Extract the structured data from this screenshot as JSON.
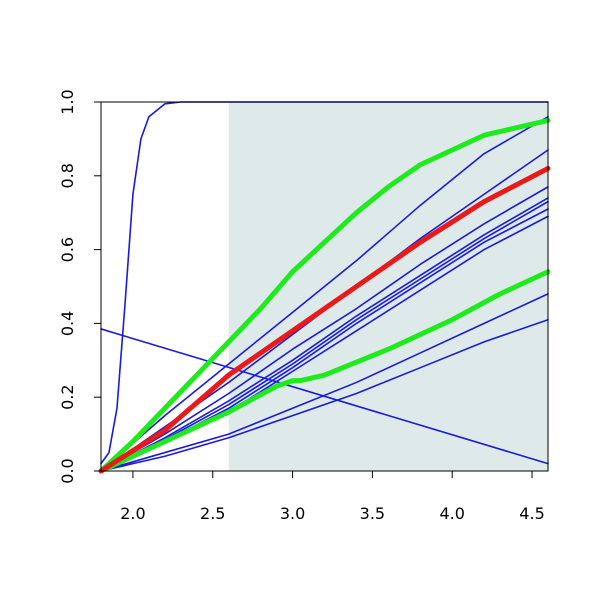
{
  "chart_data": {
    "type": "line",
    "title": "",
    "xlabel": "",
    "ylabel": "",
    "xlim": [
      1.8,
      4.6
    ],
    "ylim": [
      0,
      1
    ],
    "x_ticks": [
      "2.0",
      "2.5",
      "3.0",
      "3.5",
      "4.0",
      "4.5"
    ],
    "y_ticks": [
      "0.0",
      "0.2",
      "0.4",
      "0.6",
      "0.8",
      "1.0"
    ],
    "grid": false,
    "legend": "none",
    "shaded_region": {
      "x_from": 2.6,
      "x_to": 4.6,
      "color": "#deeaea"
    },
    "colors": {
      "blue": "#1a1adb",
      "green": "#1eea1e",
      "red": "#ea1a1a"
    },
    "series": [
      {
        "color": "blue",
        "width": "thin",
        "points": [
          [
            1.8,
            0.02
          ],
          [
            1.85,
            0.05
          ],
          [
            1.9,
            0.17
          ],
          [
            1.95,
            0.45
          ],
          [
            2.0,
            0.75
          ],
          [
            2.05,
            0.9
          ],
          [
            2.1,
            0.96
          ],
          [
            2.2,
            0.995
          ],
          [
            2.3,
            1.0
          ],
          [
            4.6,
            1.0
          ]
        ]
      },
      {
        "color": "blue",
        "width": "thin",
        "points": [
          [
            1.8,
            0.385
          ],
          [
            4.6,
            0.02
          ]
        ]
      },
      {
        "color": "blue",
        "width": "thin",
        "points": [
          [
            1.8,
            0.0
          ],
          [
            2.2,
            0.15
          ],
          [
            2.6,
            0.29
          ],
          [
            3.0,
            0.43
          ],
          [
            3.4,
            0.57
          ],
          [
            3.8,
            0.72
          ],
          [
            4.2,
            0.86
          ],
          [
            4.6,
            0.96
          ]
        ]
      },
      {
        "color": "blue",
        "width": "thin",
        "points": [
          [
            1.8,
            0.0
          ],
          [
            2.2,
            0.12
          ],
          [
            2.6,
            0.24
          ],
          [
            3.0,
            0.37
          ],
          [
            3.4,
            0.5
          ],
          [
            3.8,
            0.63
          ],
          [
            4.2,
            0.75
          ],
          [
            4.6,
            0.87
          ]
        ]
      },
      {
        "color": "blue",
        "width": "thin",
        "points": [
          [
            1.8,
            0.0
          ],
          [
            2.2,
            0.1
          ],
          [
            2.6,
            0.21
          ],
          [
            3.0,
            0.33
          ],
          [
            3.4,
            0.44
          ],
          [
            3.8,
            0.56
          ],
          [
            4.2,
            0.67
          ],
          [
            4.6,
            0.77
          ]
        ]
      },
      {
        "color": "blue",
        "width": "thin",
        "points": [
          [
            1.8,
            0.0
          ],
          [
            2.2,
            0.09
          ],
          [
            2.6,
            0.19
          ],
          [
            3.0,
            0.3
          ],
          [
            3.4,
            0.42
          ],
          [
            3.8,
            0.53
          ],
          [
            4.2,
            0.64
          ],
          [
            4.6,
            0.74
          ]
        ]
      },
      {
        "color": "blue",
        "width": "thin",
        "points": [
          [
            1.8,
            0.0
          ],
          [
            2.2,
            0.085
          ],
          [
            2.6,
            0.18
          ],
          [
            3.0,
            0.29
          ],
          [
            3.4,
            0.41
          ],
          [
            3.8,
            0.52
          ],
          [
            4.2,
            0.63
          ],
          [
            4.6,
            0.73
          ]
        ]
      },
      {
        "color": "blue",
        "width": "thin",
        "points": [
          [
            1.8,
            0.0
          ],
          [
            2.2,
            0.08
          ],
          [
            2.6,
            0.17
          ],
          [
            3.0,
            0.28
          ],
          [
            3.4,
            0.4
          ],
          [
            3.8,
            0.51
          ],
          [
            4.2,
            0.62
          ],
          [
            4.6,
            0.71
          ]
        ]
      },
      {
        "color": "blue",
        "width": "thin",
        "points": [
          [
            1.8,
            0.0
          ],
          [
            2.2,
            0.075
          ],
          [
            2.6,
            0.16
          ],
          [
            3.0,
            0.27
          ],
          [
            3.4,
            0.38
          ],
          [
            3.8,
            0.49
          ],
          [
            4.2,
            0.6
          ],
          [
            4.6,
            0.69
          ]
        ]
      },
      {
        "color": "blue",
        "width": "thin",
        "points": [
          [
            1.8,
            0.0
          ],
          [
            2.2,
            0.05
          ],
          [
            2.6,
            0.1
          ],
          [
            3.0,
            0.17
          ],
          [
            3.4,
            0.24
          ],
          [
            3.8,
            0.32
          ],
          [
            4.2,
            0.4
          ],
          [
            4.6,
            0.48
          ]
        ]
      },
      {
        "color": "blue",
        "width": "thin",
        "points": [
          [
            1.8,
            0.0
          ],
          [
            2.2,
            0.04
          ],
          [
            2.6,
            0.09
          ],
          [
            3.0,
            0.15
          ],
          [
            3.4,
            0.21
          ],
          [
            3.8,
            0.28
          ],
          [
            4.2,
            0.35
          ],
          [
            4.6,
            0.41
          ]
        ]
      },
      {
        "color": "green",
        "width": "thick",
        "points": [
          [
            1.8,
            0.0
          ],
          [
            2.0,
            0.08
          ],
          [
            2.2,
            0.17
          ],
          [
            2.4,
            0.26
          ],
          [
            2.6,
            0.35
          ],
          [
            2.8,
            0.44
          ],
          [
            3.0,
            0.54
          ],
          [
            3.2,
            0.62
          ],
          [
            3.4,
            0.7
          ],
          [
            3.6,
            0.77
          ],
          [
            3.8,
            0.83
          ],
          [
            4.0,
            0.87
          ],
          [
            4.2,
            0.91
          ],
          [
            4.4,
            0.93
          ],
          [
            4.6,
            0.95
          ]
        ]
      },
      {
        "color": "green",
        "width": "thick",
        "points": [
          [
            1.8,
            0.0
          ],
          [
            2.2,
            0.08
          ],
          [
            2.6,
            0.16
          ],
          [
            2.9,
            0.23
          ],
          [
            3.0,
            0.245
          ],
          [
            3.05,
            0.245
          ],
          [
            3.1,
            0.25
          ],
          [
            3.2,
            0.26
          ],
          [
            3.6,
            0.33
          ],
          [
            4.0,
            0.41
          ],
          [
            4.3,
            0.48
          ],
          [
            4.6,
            0.54
          ]
        ]
      },
      {
        "color": "red",
        "width": "thick",
        "points": [
          [
            1.8,
            0.0
          ],
          [
            2.2,
            0.11
          ],
          [
            2.6,
            0.26
          ],
          [
            3.0,
            0.38
          ],
          [
            3.4,
            0.5
          ],
          [
            3.8,
            0.62
          ],
          [
            4.2,
            0.73
          ],
          [
            4.6,
            0.82
          ]
        ]
      }
    ]
  }
}
